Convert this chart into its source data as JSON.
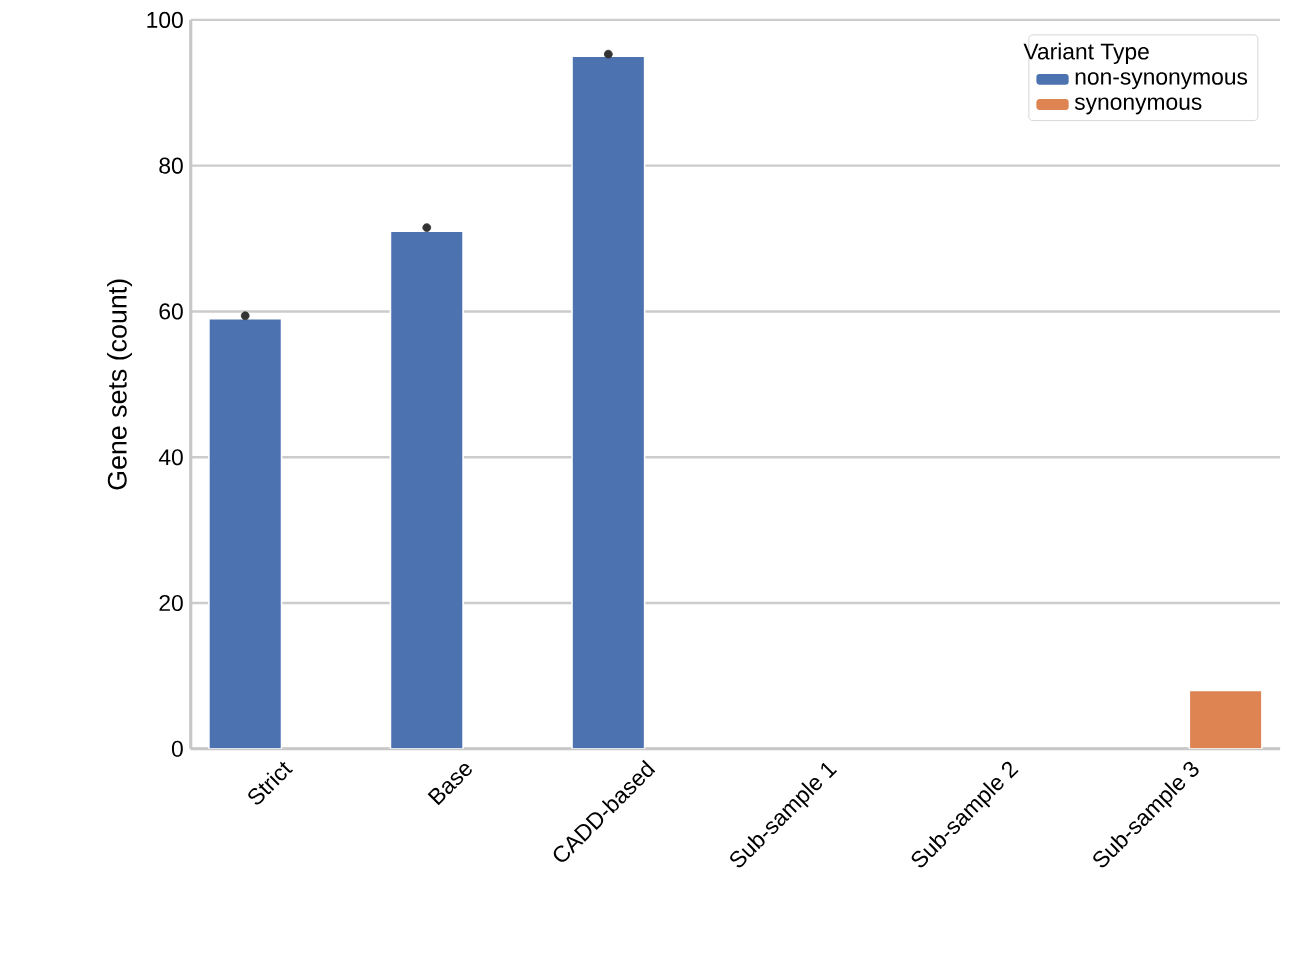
{
  "chart_data": {
    "type": "bar",
    "ylabel": "Gene sets (count)",
    "legend_title": "Variant Type",
    "categories": [
      "Strict",
      "Base",
      "CADD-based",
      "Sub-sample 1",
      "Sub-sample 2",
      "Sub-sample 3"
    ],
    "series": [
      {
        "name": "non-synonymous",
        "color": "#4c72b0",
        "values": [
          59,
          71,
          95,
          null,
          null,
          null
        ]
      },
      {
        "name": "synonymous",
        "color": "#dd8452",
        "values": [
          null,
          null,
          null,
          null,
          null,
          8
        ]
      },
      {
        "type": "scatter",
        "color": "#333333",
        "x": [
          "Strict",
          "Base",
          "CADD-based"
        ],
        "values": [
          59.4,
          71.5,
          95.3
        ]
      }
    ],
    "ylim": [
      0,
      100
    ],
    "yticks": [
      0,
      20,
      40,
      60,
      80,
      100
    ],
    "grid": "y",
    "legend": "top right"
  }
}
